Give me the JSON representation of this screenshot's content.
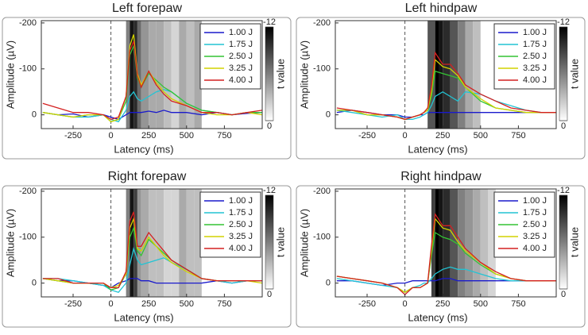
{
  "chart_data": [
    {
      "type": "line",
      "title": "Left forepaw",
      "x_label": "Latency (ms)",
      "y_label": "Amplitude (µV)",
      "x": [
        -450,
        -350,
        -250,
        -150,
        -50,
        0,
        50,
        100,
        125,
        150,
        175,
        200,
        250,
        300,
        350,
        400,
        500,
        600,
        700,
        800,
        900,
        1000
      ],
      "xlim": [
        -460,
        1000
      ],
      "ylim": [
        -205,
        30
      ],
      "xticks": [
        -250,
        0,
        250,
        500,
        750
      ],
      "yticks": [
        -200,
        -100,
        0
      ],
      "onset": 0,
      "series": [
        {
          "name": "1.00 J",
          "color": "#1a1acc",
          "values": [
            -5,
            0,
            -2,
            5,
            0,
            5,
            10,
            0,
            -5,
            -5,
            -5,
            -5,
            -8,
            -5,
            -10,
            -5,
            -5,
            0,
            -5,
            0,
            -3,
            -5
          ]
        },
        {
          "name": "1.75 J",
          "color": "#22c4d4",
          "values": [
            -5,
            0,
            5,
            5,
            0,
            10,
            15,
            -10,
            -40,
            -50,
            -35,
            -30,
            -40,
            -50,
            -55,
            -50,
            -25,
            -10,
            -5,
            0,
            -5,
            -5
          ]
        },
        {
          "name": "2.50 J",
          "color": "#33c433",
          "values": [
            -5,
            0,
            5,
            0,
            0,
            15,
            10,
            -30,
            -130,
            -150,
            -80,
            -60,
            -90,
            -75,
            -60,
            -50,
            -25,
            -10,
            -5,
            0,
            -5,
            -5
          ]
        },
        {
          "name": "3.25 J",
          "color": "#d2d200",
          "values": [
            -5,
            0,
            5,
            0,
            0,
            15,
            10,
            -40,
            -150,
            -175,
            -90,
            -65,
            -95,
            -70,
            -50,
            -35,
            -20,
            -5,
            0,
            0,
            -5,
            0
          ]
        },
        {
          "name": "4.00 J",
          "color": "#d42020",
          "values": [
            -25,
            -15,
            -5,
            -5,
            0,
            10,
            5,
            -40,
            -140,
            -160,
            -85,
            -60,
            -95,
            -65,
            -45,
            -30,
            -20,
            -5,
            -5,
            0,
            -5,
            -10
          ]
        }
      ],
      "t_bins": [
        100,
        125,
        150,
        175,
        200,
        250,
        300,
        350,
        400,
        450,
        500,
        550,
        600
      ],
      "t_values": [
        -6,
        -11,
        -10,
        -7,
        -5,
        -4,
        -4,
        -3,
        -2,
        -4,
        -3,
        -4
      ],
      "clim": [
        -12,
        0
      ],
      "cticks": [
        -12,
        0
      ],
      "colorbar_label": "t value"
    },
    {
      "type": "line",
      "title": "Left hindpaw",
      "x_label": "Latency (ms)",
      "y_label": "Amplitude (µV)",
      "x": [
        -450,
        -350,
        -250,
        -150,
        -50,
        0,
        50,
        100,
        125,
        150,
        175,
        200,
        250,
        300,
        350,
        400,
        500,
        600,
        700,
        800,
        900,
        1000
      ],
      "xlim": [
        -460,
        1000
      ],
      "ylim": [
        -205,
        30
      ],
      "xticks": [
        -250,
        0,
        250,
        500,
        750
      ],
      "yticks": [
        -200,
        -100,
        0
      ],
      "onset": 0,
      "series": [
        {
          "name": "1.00 J",
          "color": "#1a1acc",
          "values": [
            -5,
            -10,
            -5,
            0,
            0,
            5,
            5,
            0,
            0,
            -5,
            -5,
            -5,
            -5,
            -5,
            -5,
            -5,
            -5,
            -5,
            -5,
            -5,
            -5,
            -5
          ]
        },
        {
          "name": "1.75 J",
          "color": "#22c4d4",
          "values": [
            -10,
            -5,
            0,
            5,
            0,
            10,
            10,
            5,
            0,
            -5,
            -20,
            -40,
            -50,
            -40,
            -30,
            -50,
            -45,
            -30,
            -20,
            -10,
            -5,
            -5
          ]
        },
        {
          "name": "2.50 J",
          "color": "#33c433",
          "values": [
            -10,
            -10,
            0,
            0,
            5,
            10,
            5,
            0,
            -5,
            -10,
            -40,
            -95,
            -90,
            -85,
            -80,
            -60,
            -30,
            -15,
            -10,
            -5,
            -5,
            -5
          ]
        },
        {
          "name": "3.25 J",
          "color": "#d2d200",
          "values": [
            -10,
            -10,
            0,
            0,
            5,
            10,
            5,
            0,
            -5,
            -10,
            -50,
            -120,
            -105,
            -100,
            -85,
            -60,
            -35,
            -15,
            -10,
            -5,
            -5,
            -5
          ]
        },
        {
          "name": "4.00 J",
          "color": "#d42020",
          "values": [
            -15,
            -10,
            -5,
            0,
            5,
            10,
            5,
            0,
            -5,
            -15,
            -60,
            -135,
            -110,
            -110,
            -90,
            -65,
            -45,
            -30,
            -15,
            -10,
            -5,
            -5
          ]
        }
      ],
      "t_bins": [
        150,
        200,
        225,
        250,
        300,
        350,
        400,
        450,
        500
      ],
      "t_values": [
        -8,
        -12,
        -11,
        -10,
        -8,
        -6,
        -4,
        -3
      ],
      "clim": [
        -12,
        0
      ],
      "cticks": [
        -12,
        0
      ],
      "colorbar_label": "t value"
    },
    {
      "type": "line",
      "title": "Right forepaw",
      "x_label": "Latency (ms)",
      "y_label": "Amplitude (µV)",
      "x": [
        -450,
        -350,
        -250,
        -150,
        -50,
        0,
        50,
        100,
        125,
        150,
        175,
        200,
        250,
        300,
        350,
        400,
        500,
        600,
        700,
        800,
        900,
        1000
      ],
      "xlim": [
        -460,
        1000
      ],
      "ylim": [
        -205,
        30
      ],
      "xticks": [
        -250,
        0,
        250,
        500,
        750
      ],
      "yticks": [
        -200,
        -100,
        0
      ],
      "onset": 0,
      "series": [
        {
          "name": "1.00 J",
          "color": "#1a1acc",
          "values": [
            -10,
            -5,
            -5,
            0,
            5,
            10,
            0,
            -5,
            -10,
            -10,
            -10,
            -5,
            -5,
            0,
            0,
            0,
            0,
            0,
            -5,
            0,
            -5,
            -5
          ]
        },
        {
          "name": "1.75 J",
          "color": "#22c4d4",
          "values": [
            -10,
            -10,
            -5,
            0,
            5,
            15,
            20,
            0,
            -40,
            -75,
            -50,
            -40,
            -45,
            -50,
            -55,
            -45,
            -30,
            -10,
            -5,
            0,
            -5,
            -5
          ]
        },
        {
          "name": "2.50 J",
          "color": "#33c433",
          "values": [
            -10,
            -5,
            0,
            0,
            0,
            15,
            10,
            -20,
            -100,
            -120,
            -70,
            -60,
            -95,
            -80,
            -65,
            -50,
            -30,
            -10,
            -5,
            -5,
            -5,
            -5
          ]
        },
        {
          "name": "3.25 J",
          "color": "#d2d200",
          "values": [
            -10,
            -5,
            0,
            0,
            0,
            10,
            5,
            -20,
            -120,
            -140,
            -75,
            -70,
            -100,
            -80,
            -60,
            -45,
            -25,
            -10,
            -5,
            -5,
            -5,
            0
          ]
        },
        {
          "name": "4.00 J",
          "color": "#d42020",
          "values": [
            -10,
            -10,
            0,
            0,
            0,
            10,
            10,
            -25,
            -135,
            -155,
            -80,
            -80,
            -110,
            -90,
            -70,
            -50,
            -30,
            -10,
            -5,
            -5,
            -5,
            -5
          ]
        }
      ],
      "t_bins": [
        100,
        125,
        150,
        175,
        200,
        250,
        300,
        350,
        400,
        450,
        500,
        550,
        600
      ],
      "t_values": [
        -6,
        -11,
        -9,
        -5,
        -4,
        -3,
        -3,
        -2,
        -2,
        -4,
        -3,
        -3
      ],
      "clim": [
        -12,
        0
      ],
      "cticks": [
        -12,
        0
      ],
      "colorbar_label": "t value"
    },
    {
      "type": "line",
      "title": "Right hindpaw",
      "x_label": "Latency (ms)",
      "y_label": "Amplitude (µV)",
      "x": [
        -450,
        -350,
        -250,
        -150,
        -50,
        0,
        50,
        100,
        125,
        150,
        175,
        200,
        250,
        300,
        350,
        400,
        500,
        600,
        700,
        800,
        900,
        1000
      ],
      "xlim": [
        -460,
        1000
      ],
      "ylim": [
        -205,
        30
      ],
      "xticks": [
        -250,
        0,
        250,
        500,
        750
      ],
      "yticks": [
        -200,
        -100,
        0
      ],
      "onset": 0,
      "series": [
        {
          "name": "1.00 J",
          "color": "#1a1acc",
          "values": [
            -5,
            -5,
            0,
            5,
            0,
            0,
            -5,
            -5,
            -5,
            -5,
            -5,
            -5,
            -10,
            -10,
            -5,
            -5,
            -5,
            -5,
            -5,
            -5,
            -5,
            -5
          ]
        },
        {
          "name": "1.75 J",
          "color": "#22c4d4",
          "values": [
            -10,
            -5,
            0,
            5,
            10,
            20,
            10,
            5,
            0,
            0,
            -10,
            -20,
            -30,
            -35,
            -30,
            -30,
            -20,
            -10,
            -5,
            -5,
            -5,
            -5
          ]
        },
        {
          "name": "2.50 J",
          "color": "#33c433",
          "values": [
            -15,
            -10,
            -5,
            0,
            10,
            20,
            10,
            10,
            5,
            0,
            -60,
            -110,
            -100,
            -95,
            -85,
            -65,
            -40,
            -20,
            -10,
            -5,
            -5,
            -5
          ]
        },
        {
          "name": "3.25 J",
          "color": "#d2d200",
          "values": [
            -15,
            -10,
            -5,
            0,
            10,
            20,
            10,
            10,
            5,
            0,
            -70,
            -140,
            -120,
            -115,
            -90,
            -70,
            -45,
            -20,
            -10,
            -5,
            -5,
            -5
          ]
        },
        {
          "name": "4.00 J",
          "color": "#d42020",
          "values": [
            -15,
            -10,
            -5,
            0,
            10,
            25,
            10,
            10,
            5,
            0,
            -80,
            -150,
            -125,
            -125,
            -100,
            -75,
            -45,
            -25,
            -10,
            -5,
            -5,
            -5
          ]
        }
      ],
      "t_bins": [
        175,
        200,
        225,
        250,
        300,
        350,
        400,
        450,
        500,
        550,
        600
      ],
      "t_values": [
        -9,
        -12,
        -11,
        -10,
        -8,
        -6,
        -5,
        -4,
        -3,
        -2
      ],
      "clim": [
        -12,
        0
      ],
      "cticks": [
        -12,
        0
      ],
      "colorbar_label": "t value"
    }
  ]
}
